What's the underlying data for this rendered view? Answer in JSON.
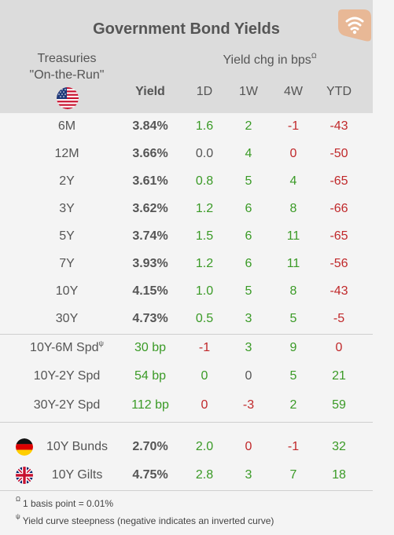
{
  "title": "Government Bond Yields",
  "left_header": {
    "line1": "Treasuries",
    "line2": "\"On-the-Run\"",
    "flag": "us-flag-icon"
  },
  "yield_chg_header": {
    "label": "Yield chg in bps",
    "marker": "Ω"
  },
  "columns": {
    "yield": "Yield",
    "d1": "1D",
    "w1": "1W",
    "w4": "4W",
    "ytd": "YTD"
  },
  "treasuries": [
    {
      "label": "6M",
      "yield": "3.84%",
      "d1": "1.6",
      "w1": "2",
      "w4": "-1",
      "ytd": "-43"
    },
    {
      "label": "12M",
      "yield": "3.66%",
      "d1": "0.0",
      "w1": "4",
      "w4": "0",
      "ytd": "-50"
    },
    {
      "label": "2Y",
      "yield": "3.61%",
      "d1": "0.8",
      "w1": "5",
      "w4": "4",
      "ytd": "-65"
    },
    {
      "label": "3Y",
      "yield": "3.62%",
      "d1": "1.2",
      "w1": "6",
      "w4": "8",
      "ytd": "-66"
    },
    {
      "label": "5Y",
      "yield": "3.74%",
      "d1": "1.5",
      "w1": "6",
      "w4": "11",
      "ytd": "-65"
    },
    {
      "label": "7Y",
      "yield": "3.93%",
      "d1": "1.2",
      "w1": "6",
      "w4": "11",
      "ytd": "-56"
    },
    {
      "label": "10Y",
      "yield": "4.15%",
      "d1": "1.0",
      "w1": "5",
      "w4": "8",
      "ytd": "-43"
    },
    {
      "label": "30Y",
      "yield": "4.73%",
      "d1": "0.5",
      "w1": "3",
      "w4": "5",
      "ytd": "-5"
    }
  ],
  "spreads": [
    {
      "label": "10Y-6M Spd",
      "marker": "ψ",
      "yield": "30 bp",
      "d1": "-1",
      "w1": "3",
      "w4": "9",
      "ytd": "0"
    },
    {
      "label": "10Y-2Y Spd",
      "marker": "",
      "yield": "54 bp",
      "d1": "0",
      "w1": "0",
      "w4": "5",
      "ytd": "21"
    },
    {
      "label": "30Y-2Y Spd",
      "marker": "",
      "yield": "112 bp",
      "d1": "0",
      "w1": "-3",
      "w4": "2",
      "ytd": "59"
    }
  ],
  "international": [
    {
      "label": "10Y Bunds",
      "flag": "germany-flag-icon",
      "yield": "2.70%",
      "d1": "2.0",
      "w1": "0",
      "w4": "-1",
      "ytd": "32"
    },
    {
      "label": "10Y Gilts",
      "flag": "uk-flag-icon",
      "yield": "4.75%",
      "d1": "2.8",
      "w1": "3",
      "w4": "7",
      "ytd": "18"
    }
  ],
  "footnotes": [
    {
      "marker": "Ω",
      "text": "1 basis point = 0.01%"
    },
    {
      "marker": "ψ",
      "text": "Yield curve steepness (negative indicates an inverted curve)"
    }
  ],
  "colors": {
    "positive": "#3a9a26",
    "negative": "#c0282a",
    "neutral": "#555555",
    "header_bg": "#dcdcdc",
    "body_bg": "#f4f4f4",
    "logo": "#e8b896"
  }
}
